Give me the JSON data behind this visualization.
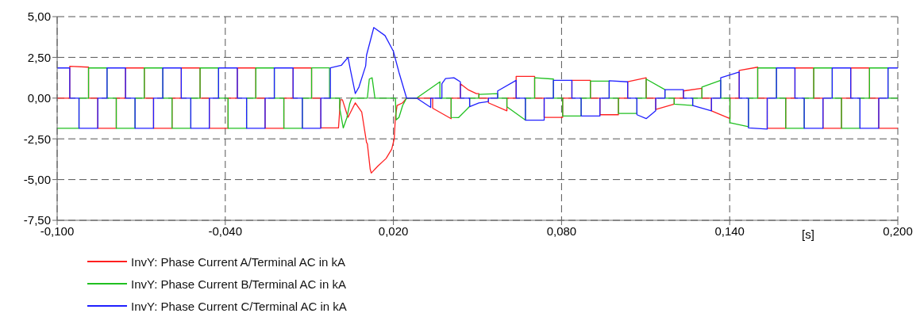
{
  "chart_data": {
    "type": "line",
    "xlabel": "[s]",
    "xlim": [
      -0.1,
      0.2
    ],
    "xticks": [
      {
        "value": -0.1,
        "label": "-0,100"
      },
      {
        "value": -0.04,
        "label": "-0,040"
      },
      {
        "value": 0.02,
        "label": "0,020"
      },
      {
        "value": 0.08,
        "label": "0,080"
      },
      {
        "value": 0.14,
        "label": "0,140"
      },
      {
        "value": 0.2,
        "label": "0,200"
      }
    ],
    "ylim": [
      -7.5,
      5
    ],
    "yticks": [
      {
        "value": -7.5,
        "label": "-7,50"
      },
      {
        "value": -5,
        "label": "-5,00"
      },
      {
        "value": -2.5,
        "label": "-2,50"
      },
      {
        "value": 0,
        "label": "0,00"
      },
      {
        "value": 2.5,
        "label": "2,50"
      },
      {
        "value": 5,
        "label": "5,00"
      }
    ],
    "grid": true,
    "legend": "bottom",
    "marker": "none",
    "line_style": "solid",
    "series": [
      {
        "name": "InvY: Phase Current A/Terminal AC in kA",
        "color": "#ff2020",
        "x": [
          -0.1,
          -0.0955,
          -0.0955,
          -0.0888,
          -0.0888,
          -0.0855,
          -0.0855,
          -0.0789,
          -0.0789,
          -0.0756,
          -0.0756,
          -0.0689,
          -0.0689,
          -0.0656,
          -0.0656,
          -0.059,
          -0.059,
          -0.0557,
          -0.0557,
          -0.049,
          -0.049,
          -0.0457,
          -0.0457,
          -0.039,
          -0.039,
          -0.0357,
          -0.0357,
          -0.0291,
          -0.0291,
          -0.0258,
          -0.0258,
          -0.0191,
          -0.0191,
          -0.0158,
          -0.0158,
          -0.0092,
          -0.0092,
          -0.0059,
          -0.0059,
          0.0004,
          0.0011,
          0.0018,
          0.0038,
          0.0064,
          0.0087,
          0.0104,
          0.0107,
          0.0117,
          0.0121,
          0.0144,
          0.0174,
          0.0194,
          0.0203,
          0.0207,
          0.0213,
          0.0233,
          0.0247,
          0.034,
          0.034,
          0.0406,
          0.0406,
          0.0439,
          0.0439,
          0.0466,
          0.0496,
          0.0505,
          0.0505,
          0.0539,
          0.0539,
          0.0605,
          0.0605,
          0.0638,
          0.0638,
          0.0704,
          0.0704,
          0.0738,
          0.0738,
          0.0804,
          0.0804,
          0.0837,
          0.0837,
          0.0903,
          0.0903,
          0.0937,
          0.0937,
          0.1003,
          0.1003,
          0.1036,
          0.1036,
          0.1102,
          0.1102,
          0.1136,
          0.1136,
          0.1202,
          0.1202,
          0.1235,
          0.1235,
          0.1301,
          0.1301,
          0.1335,
          0.1335,
          0.1401,
          0.1401,
          0.1434,
          0.1434,
          0.15,
          0.15,
          0.1534,
          0.1534,
          0.16,
          0.16,
          0.1633,
          0.1633,
          0.17,
          0.17,
          0.1733,
          0.1733,
          0.1799,
          0.1799,
          0.1832,
          0.1832,
          0.1899,
          0.1899,
          0.1932,
          0.1932,
          0.2
        ],
        "values": [
          0,
          0,
          1.95,
          1.9,
          0,
          0,
          -1.85,
          -1.85,
          0,
          0,
          1.85,
          1.85,
          0,
          0,
          -1.85,
          -1.85,
          0,
          0,
          1.85,
          1.85,
          0,
          0,
          -1.85,
          -1.85,
          0,
          0,
          1.85,
          1.85,
          0,
          0,
          -1.85,
          -1.85,
          0,
          0,
          1.85,
          1.85,
          0,
          0,
          -1.83,
          -1.83,
          -0.1,
          -0.1,
          -1.18,
          -0.29,
          -0.86,
          -2.72,
          -2.8,
          -4.35,
          -4.6,
          -4.18,
          -3.7,
          -3.13,
          -2.48,
          -1.18,
          -0.45,
          -0.29,
          0,
          0,
          -0.62,
          -1.26,
          0,
          0,
          0.88,
          0.52,
          0.28,
          0.28,
          0,
          0,
          -0.29,
          -0.78,
          0,
          0,
          1.33,
          1.33,
          0,
          0,
          -1.18,
          -1.18,
          0,
          0,
          1.09,
          1.09,
          0,
          0,
          -1.02,
          -1.02,
          0,
          0,
          1.0,
          1.25,
          0,
          0,
          -0.7,
          -0.37,
          0,
          0,
          0.44,
          0.6,
          0,
          0,
          -0.78,
          -1.26,
          0,
          0,
          1.7,
          1.9,
          0,
          0,
          -1.85,
          -1.85,
          0,
          0,
          1.85,
          1.85,
          0,
          0,
          -1.85,
          -1.85,
          0,
          0,
          1.85,
          1.85,
          0,
          0,
          -1.85,
          -1.85
        ]
      },
      {
        "name": "InvY: Phase Current B/Terminal AC in kA",
        "color": "#20c020",
        "x": [
          -0.1,
          -0.0922,
          -0.0922,
          -0.0888,
          -0.0888,
          -0.0822,
          -0.0822,
          -0.0789,
          -0.0789,
          -0.0722,
          -0.0722,
          -0.0689,
          -0.0689,
          -0.0623,
          -0.0623,
          -0.059,
          -0.059,
          -0.0523,
          -0.0523,
          -0.049,
          -0.049,
          -0.0424,
          -0.0424,
          -0.039,
          -0.039,
          -0.0324,
          -0.0324,
          -0.0291,
          -0.0291,
          -0.0225,
          -0.0225,
          -0.0191,
          -0.0191,
          -0.0125,
          -0.0125,
          -0.0092,
          -0.0092,
          -0.0028,
          -0.0028,
          0.0008,
          0.0008,
          0.0021,
          0.0034,
          0.0044,
          0.0051,
          0.0107,
          0.0114,
          0.0124,
          0.0134,
          0.0207,
          0.021,
          0.022,
          0.0233,
          0.0247,
          0.0283,
          0.0366,
          0.0366,
          0.0406,
          0.0406,
          0.0432,
          0.0466,
          0.0472,
          0.0472,
          0.0505,
          0.0505,
          0.0572,
          0.0572,
          0.0605,
          0.0605,
          0.0671,
          0.0671,
          0.0704,
          0.0704,
          0.0771,
          0.0771,
          0.0804,
          0.0804,
          0.087,
          0.087,
          0.0903,
          0.0903,
          0.097,
          0.097,
          0.1003,
          0.1003,
          0.1069,
          0.1069,
          0.1102,
          0.1102,
          0.1169,
          0.1169,
          0.1202,
          0.1202,
          0.1268,
          0.1268,
          0.1301,
          0.1301,
          0.1368,
          0.1368,
          0.1401,
          0.1401,
          0.1467,
          0.1467,
          0.15,
          0.15,
          0.1567,
          0.1567,
          0.16,
          0.16,
          0.1666,
          0.1666,
          0.17,
          0.17,
          0.1766,
          0.1766,
          0.1799,
          0.1799,
          0.1865,
          0.1865,
          0.1899,
          0.1899,
          0.1965,
          0.1965,
          0.2
        ],
        "values": [
          -1.85,
          -1.85,
          0,
          0,
          1.85,
          1.85,
          0,
          0,
          -1.85,
          -1.85,
          0,
          0,
          1.85,
          1.85,
          0,
          0,
          -1.85,
          -1.85,
          0,
          0,
          1.85,
          1.85,
          0,
          0,
          -1.85,
          -1.85,
          0,
          0,
          1.85,
          1.85,
          0,
          0,
          -1.85,
          -1.85,
          0,
          0,
          1.86,
          1.86,
          0,
          0,
          -0.6,
          -1.83,
          -1.2,
          -0.35,
          0,
          0,
          1.17,
          1.25,
          0,
          0,
          -1.34,
          -1.18,
          -0.45,
          0,
          0,
          1.0,
          0,
          0,
          -1.18,
          -1.2,
          -0.62,
          -0.5,
          0,
          0,
          0.23,
          0.28,
          0,
          0,
          -0.53,
          -1.35,
          0,
          0,
          1.25,
          1.17,
          0,
          0,
          -1.1,
          -1.1,
          0,
          0,
          1.04,
          1.04,
          0,
          0,
          -0.94,
          -0.94,
          0,
          0,
          1.17,
          0.52,
          0,
          0,
          -0.37,
          -0.45,
          0,
          0,
          0.68,
          1.09,
          0,
          0,
          -1.51,
          -1.75,
          0,
          0,
          1.85,
          1.85,
          0,
          0,
          -1.85,
          -1.85,
          0,
          0,
          1.85,
          1.85,
          0,
          0,
          -1.85,
          -1.85,
          0,
          0,
          1.85,
          1.85,
          0,
          0
        ]
      },
      {
        "name": "InvY: Phase Current C/Terminal AC in kA",
        "color": "#2020ff",
        "x": [
          -0.1,
          -0.0955,
          -0.0955,
          -0.0922,
          -0.0922,
          -0.0855,
          -0.0855,
          -0.0822,
          -0.0822,
          -0.0756,
          -0.0756,
          -0.0722,
          -0.0722,
          -0.0656,
          -0.0656,
          -0.0623,
          -0.0623,
          -0.0557,
          -0.0557,
          -0.0523,
          -0.0523,
          -0.0457,
          -0.0457,
          -0.0424,
          -0.0424,
          -0.0357,
          -0.0357,
          -0.0324,
          -0.0324,
          -0.0258,
          -0.0258,
          -0.0225,
          -0.0225,
          -0.0158,
          -0.0158,
          -0.0125,
          -0.0125,
          -0.0059,
          -0.0059,
          -0.0025,
          -0.0025,
          0.0014,
          0.0038,
          0.0047,
          0.0064,
          0.0077,
          0.0101,
          0.0104,
          0.013,
          0.017,
          0.02,
          0.022,
          0.0247,
          0.0283,
          0.0333,
          0.0333,
          0.0373,
          0.0373,
          0.0386,
          0.0416,
          0.0439,
          0.0439,
          0.0472,
          0.0472,
          0.0505,
          0.0539,
          0.0539,
          0.0572,
          0.0572,
          0.0638,
          0.0638,
          0.0671,
          0.0671,
          0.0738,
          0.0738,
          0.0771,
          0.0771,
          0.0837,
          0.0837,
          0.087,
          0.087,
          0.0937,
          0.0937,
          0.097,
          0.097,
          0.1036,
          0.1036,
          0.1069,
          0.1069,
          0.1102,
          0.1136,
          0.1136,
          0.1169,
          0.1169,
          0.1235,
          0.1235,
          0.1268,
          0.1268,
          0.1335,
          0.1335,
          0.1368,
          0.1368,
          0.1434,
          0.1434,
          0.1467,
          0.1467,
          0.1534,
          0.1534,
          0.1567,
          0.1567,
          0.1633,
          0.1633,
          0.1666,
          0.1666,
          0.1733,
          0.1733,
          0.1766,
          0.1766,
          0.1832,
          0.1832,
          0.1865,
          0.1865,
          0.1932,
          0.1932,
          0.1965,
          0.1965,
          0.2
        ],
        "values": [
          1.85,
          1.85,
          0,
          0,
          -1.85,
          -1.85,
          0,
          0,
          1.85,
          1.85,
          0,
          0,
          -1.85,
          -1.85,
          0,
          0,
          1.85,
          1.85,
          0,
          0,
          -1.85,
          -1.85,
          0,
          0,
          1.85,
          1.85,
          0,
          0,
          -1.85,
          -1.85,
          0,
          0,
          1.85,
          1.85,
          0,
          0,
          -1.85,
          -1.85,
          0,
          0,
          1.86,
          2.01,
          2.5,
          1.7,
          0.28,
          0.68,
          1.98,
          2.63,
          4.33,
          3.84,
          2.87,
          1.57,
          0,
          0,
          -0.57,
          0,
          0,
          0.88,
          1.2,
          1.25,
          1.0,
          0,
          0,
          -0.53,
          -0.3,
          -0.21,
          0,
          0,
          0.44,
          1.09,
          0,
          0,
          -1.35,
          -1.35,
          0,
          0,
          1.09,
          1.09,
          0,
          0,
          -1.1,
          -1.1,
          0,
          0,
          1.07,
          1.0,
          0,
          0,
          -1.02,
          -1.26,
          -0.78,
          0,
          0,
          0.52,
          0.52,
          0,
          0,
          -0.45,
          -0.78,
          0,
          0,
          1.25,
          1.6,
          0,
          0,
          -1.83,
          -1.9,
          0,
          0,
          1.85,
          1.85,
          0,
          0,
          -1.85,
          -1.85,
          0,
          0,
          1.85,
          1.85,
          0,
          0,
          -1.85,
          -1.85,
          0,
          0,
          1.85,
          1.85
        ]
      }
    ]
  }
}
